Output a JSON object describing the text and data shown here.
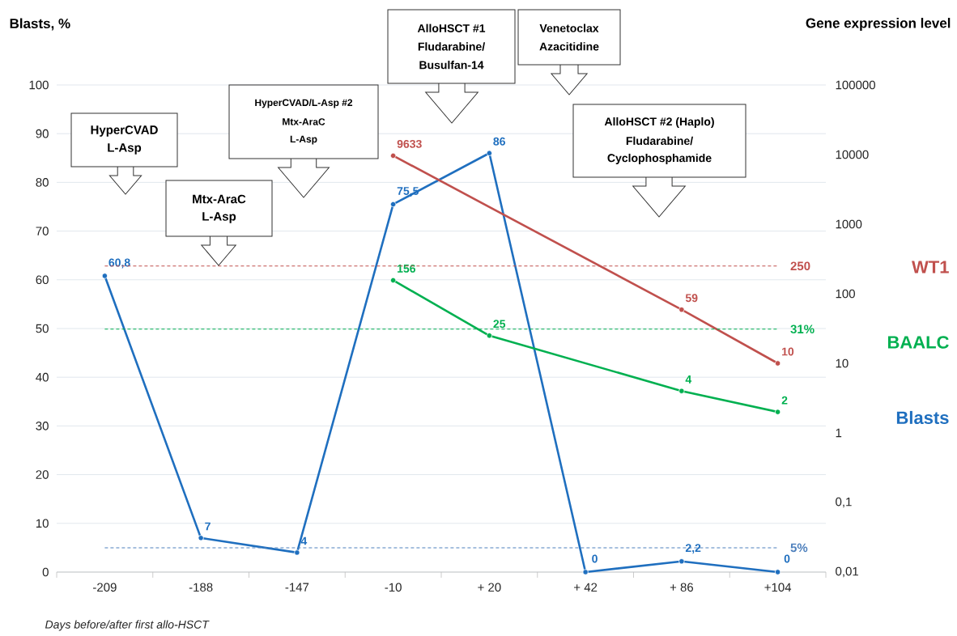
{
  "chart_data": {
    "type": "line",
    "ylabel": "Blasts, %",
    "y2label": "Gene expression level",
    "xlabel": "Days before/after first allo-HSCT",
    "categories": [
      "-209",
      "-188",
      "-147",
      "-10",
      "+ 20",
      "+ 42",
      "+ 86",
      "+104"
    ],
    "series": [
      {
        "name": "WT1",
        "color": "#c0504d",
        "axis": "y2",
        "values": [
          null,
          null,
          null,
          9633,
          null,
          null,
          59,
          10
        ],
        "value_labels": [
          null,
          null,
          null,
          "9633",
          null,
          null,
          "59",
          "10"
        ]
      },
      {
        "name": "BAALC",
        "color": "#00b050",
        "axis": "y2",
        "values": [
          null,
          null,
          null,
          156,
          25,
          null,
          4,
          2
        ],
        "value_labels": [
          null,
          null,
          null,
          "156",
          "25",
          null,
          "4",
          "2"
        ]
      },
      {
        "name": "Blasts",
        "color": "#1f6fbf",
        "values": [
          60.8,
          7,
          4,
          75.5,
          86,
          0,
          2.2,
          0
        ],
        "value_labels": [
          "60,8",
          "7",
          "4",
          "75,5",
          "86",
          "0",
          "2,2",
          "0"
        ]
      }
    ],
    "ylim": [
      0,
      100
    ],
    "yticks": [
      0,
      10,
      20,
      30,
      40,
      50,
      60,
      70,
      80,
      90,
      100
    ],
    "y2lim": [
      0.01,
      100000
    ],
    "y2ticks": [
      {
        "value": 0.01,
        "label": "0,01"
      },
      {
        "value": 0.1,
        "label": "0,1"
      },
      1,
      10,
      100,
      1000,
      10000,
      100000
    ],
    "log": "y2",
    "ref_lines": [
      {
        "axis": "y2",
        "value": 250,
        "label": "250",
        "color": "#c0504d",
        "line_style": "dashed"
      },
      {
        "axis": "y2",
        "value": 31,
        "label": "31%",
        "color": "#00b050",
        "line_style": "dashed"
      },
      {
        "axis": "y",
        "value": 5,
        "label": "5%",
        "color": "#4f81bd",
        "line_style": "dashed"
      }
    ],
    "annotations": [
      "HyperCVAD",
      "L-Asp",
      "Mtx-AraC",
      "L-Asp",
      "HyperCVAD/L-Asp #2",
      "Mtx-AraC",
      "L-Asp",
      "AlloHSCT #1",
      "Fludarabine/",
      "Busulfan-14",
      "Venetoclax",
      "Azacitidine",
      "AlloHSCT #2 (Haplo)",
      "Fludarabine/",
      "Cyclophosphamide"
    ],
    "grid": "y",
    "legend": "right",
    "marker": "circle",
    "line_style": "solid"
  }
}
